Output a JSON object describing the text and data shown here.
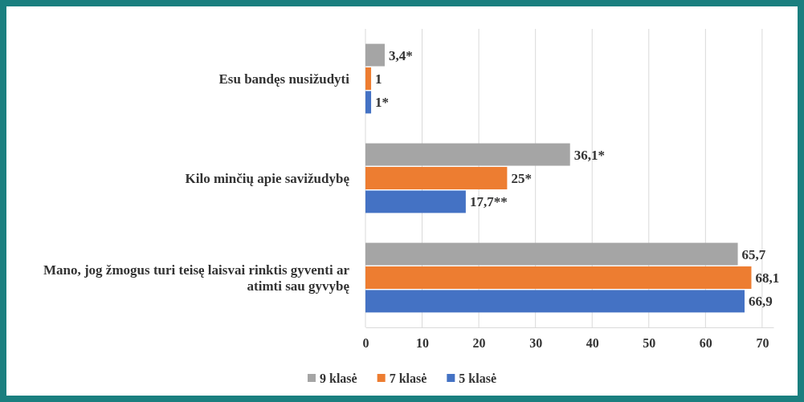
{
  "chart_data": {
    "type": "bar",
    "orientation": "horizontal",
    "categories": [
      "Esu bandęs nusižudyti",
      "Kilo minčių apie savižudybę",
      "Mano, jog žmogus turi teisę laisvai rinktis gyventi ar atimti sau gyvybę"
    ],
    "series": [
      {
        "name": "9 klasė",
        "color": "#a5a5a5",
        "values": [
          3.4,
          36.1,
          65.7
        ],
        "value_labels": [
          "3,4*",
          "36,1*",
          "65,7"
        ]
      },
      {
        "name": "7 klasė",
        "color": "#ed7d31",
        "values": [
          1,
          25,
          68.1
        ],
        "value_labels": [
          "1",
          "25*",
          "68,1"
        ]
      },
      {
        "name": "5 klasė",
        "color": "#4472c4",
        "values": [
          1,
          17.7,
          66.9
        ],
        "value_labels": [
          "1*",
          "17,7**",
          "66,9"
        ]
      }
    ],
    "xlim": [
      0,
      72
    ],
    "xticks": [
      0,
      10,
      20,
      30,
      40,
      50,
      60,
      70
    ],
    "grid": "x",
    "legend": "bottom"
  }
}
